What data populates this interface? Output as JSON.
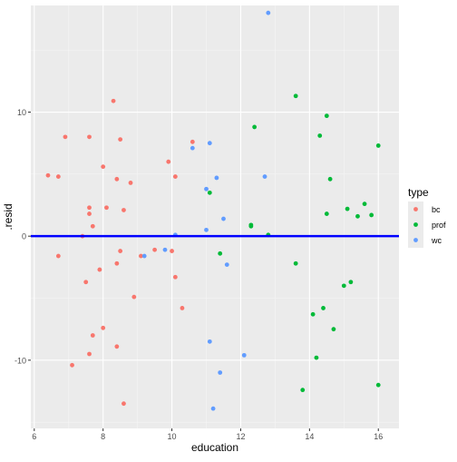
{
  "chart_data": {
    "type": "scatter",
    "title": "",
    "xlabel": "education",
    "ylabel": ".resid",
    "xlim": [
      5.9,
      16.6
    ],
    "ylim": [
      -15.5,
      18.6
    ],
    "x_ticks": [
      6,
      8,
      10,
      12,
      14,
      16
    ],
    "y_ticks": [
      -10,
      0,
      10
    ],
    "grid": true,
    "hline": {
      "y": 0,
      "color": "#0000ff"
    },
    "legend": {
      "title": "type",
      "position": "right"
    },
    "series": [
      {
        "name": "bc",
        "color": "#F8766D",
        "points": [
          [
            6.4,
            4.9
          ],
          [
            6.7,
            4.8
          ],
          [
            6.7,
            -1.6
          ],
          [
            6.9,
            8.0
          ],
          [
            7.1,
            -10.4
          ],
          [
            7.4,
            0.0
          ],
          [
            7.5,
            -3.7
          ],
          [
            7.6,
            2.3
          ],
          [
            7.6,
            1.8
          ],
          [
            7.6,
            8.0
          ],
          [
            7.6,
            -9.5
          ],
          [
            7.7,
            -8.0
          ],
          [
            7.7,
            0.8
          ],
          [
            7.9,
            -2.7
          ],
          [
            8.0,
            5.6
          ],
          [
            8.0,
            -7.4
          ],
          [
            8.1,
            2.3
          ],
          [
            8.3,
            10.9
          ],
          [
            8.4,
            4.6
          ],
          [
            8.4,
            -2.2
          ],
          [
            8.4,
            -8.9
          ],
          [
            8.5,
            -1.2
          ],
          [
            8.5,
            7.8
          ],
          [
            8.6,
            2.1
          ],
          [
            8.6,
            -13.5
          ],
          [
            8.8,
            4.3
          ],
          [
            8.9,
            -4.9
          ],
          [
            9.1,
            -1.6
          ],
          [
            9.5,
            -1.1
          ],
          [
            9.9,
            6.0
          ],
          [
            10.0,
            -1.2
          ],
          [
            10.1,
            -3.3
          ],
          [
            10.1,
            4.8
          ],
          [
            10.3,
            -5.8
          ],
          [
            10.6,
            7.6
          ]
        ]
      },
      {
        "name": "prof",
        "color": "#00BA38",
        "points": [
          [
            11.1,
            3.5
          ],
          [
            11.4,
            -1.4
          ],
          [
            12.3,
            0.8
          ],
          [
            12.3,
            0.9
          ],
          [
            12.4,
            8.8
          ],
          [
            12.8,
            0.1
          ],
          [
            13.6,
            11.3
          ],
          [
            13.6,
            -2.2
          ],
          [
            13.8,
            -12.4
          ],
          [
            14.1,
            -6.3
          ],
          [
            14.2,
            -9.8
          ],
          [
            14.3,
            8.1
          ],
          [
            14.4,
            -5.8
          ],
          [
            14.5,
            9.7
          ],
          [
            14.5,
            1.8
          ],
          [
            14.6,
            4.6
          ],
          [
            14.7,
            -7.5
          ],
          [
            15.0,
            -4.0
          ],
          [
            15.1,
            2.2
          ],
          [
            15.2,
            -3.7
          ],
          [
            15.4,
            1.6
          ],
          [
            15.6,
            2.6
          ],
          [
            15.8,
            1.7
          ],
          [
            16.0,
            7.3
          ],
          [
            16.0,
            -12.0
          ]
        ]
      },
      {
        "name": "wc",
        "color": "#619CFF",
        "points": [
          [
            9.2,
            -1.6
          ],
          [
            9.8,
            -1.1
          ],
          [
            10.1,
            0.1
          ],
          [
            10.6,
            7.1
          ],
          [
            11.0,
            3.8
          ],
          [
            11.0,
            0.5
          ],
          [
            11.1,
            -8.5
          ],
          [
            11.1,
            7.5
          ],
          [
            11.2,
            -13.9
          ],
          [
            11.3,
            4.7
          ],
          [
            11.4,
            -11.0
          ],
          [
            11.5,
            1.4
          ],
          [
            11.6,
            -2.3
          ],
          [
            12.1,
            -9.6
          ],
          [
            12.7,
            4.8
          ],
          [
            12.8,
            18.0
          ]
        ]
      }
    ]
  }
}
